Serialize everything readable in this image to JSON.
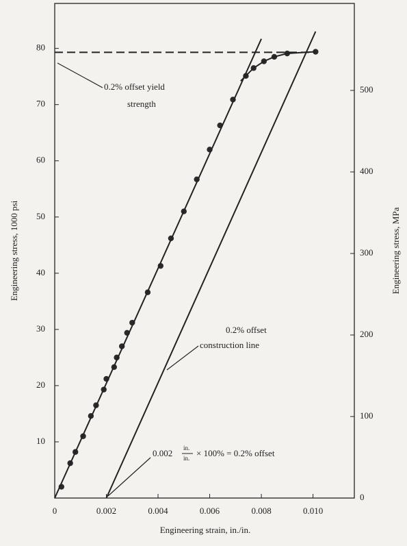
{
  "chart_data": {
    "type": "line",
    "xlabel": "Engineering strain, in./in.",
    "ylabel": "Engineering stress, 1000 psi",
    "y2label": "Engineering stress, MPa",
    "xlim": [
      0,
      0.0116
    ],
    "ylim": [
      0,
      88
    ],
    "y2lim": [
      0,
      606.7
    ],
    "xticks": [
      0,
      0.002,
      0.004,
      0.006,
      0.008,
      {
        "value": 0.01,
        "label": "0.010"
      }
    ],
    "yticks": [
      10,
      20,
      30,
      40,
      50,
      60,
      70,
      80
    ],
    "y2ticks": [
      0,
      100,
      200,
      300,
      400,
      500
    ],
    "series": [
      {
        "style": "markers",
        "color": "#2b2b2b",
        "x": [
          0.00026,
          0.0006,
          0.0008,
          0.0011,
          0.0014,
          0.0016,
          0.0019,
          0.002,
          0.0023,
          0.0024,
          0.0026,
          0.0028,
          0.003,
          0.0036,
          0.0041,
          0.0045,
          0.005,
          0.0055,
          0.006,
          0.0064,
          0.0069,
          0.0074,
          0.0077,
          0.0081,
          0.0085,
          0.009,
          0.0101
        ],
        "values": [
          2,
          6.2,
          8.2,
          11,
          14.6,
          16.5,
          19.3,
          21.2,
          23.3,
          25,
          27,
          29.4,
          31.2,
          36.6,
          41.3,
          46.2,
          51,
          56.7,
          62,
          66.3,
          70.9,
          75.1,
          76.5,
          77.7,
          78.5,
          79.1,
          79.4
        ]
      },
      {
        "style": "solid",
        "color": "#222222",
        "x": [
          0,
          0.008
        ],
        "values": [
          0,
          81.7
        ]
      },
      {
        "style": "solid",
        "color": "#222222",
        "x": [
          0.002,
          0.0101
        ],
        "values": [
          0,
          83
        ]
      },
      {
        "style": "solid",
        "color": "#222222",
        "x": [
          0.0072,
          0.0077,
          0.0081,
          0.0085,
          0.009,
          0.0101
        ],
        "values": [
          74.2,
          76.5,
          77.7,
          78.5,
          79.1,
          79.4
        ]
      },
      {
        "style": "dashed",
        "color": "#222222",
        "x": [
          0,
          0.0101
        ],
        "values": [
          79.3,
          79.3
        ]
      }
    ],
    "annotations": {
      "yield": [
        "0.2% offset yield",
        "strength"
      ],
      "construction": [
        "0.2% offset",
        "construction line"
      ],
      "offset": {
        "lead": "0.002",
        "num": "in.",
        "den": "in.",
        "tail": "× 100% = 0.2% offset"
      }
    }
  }
}
